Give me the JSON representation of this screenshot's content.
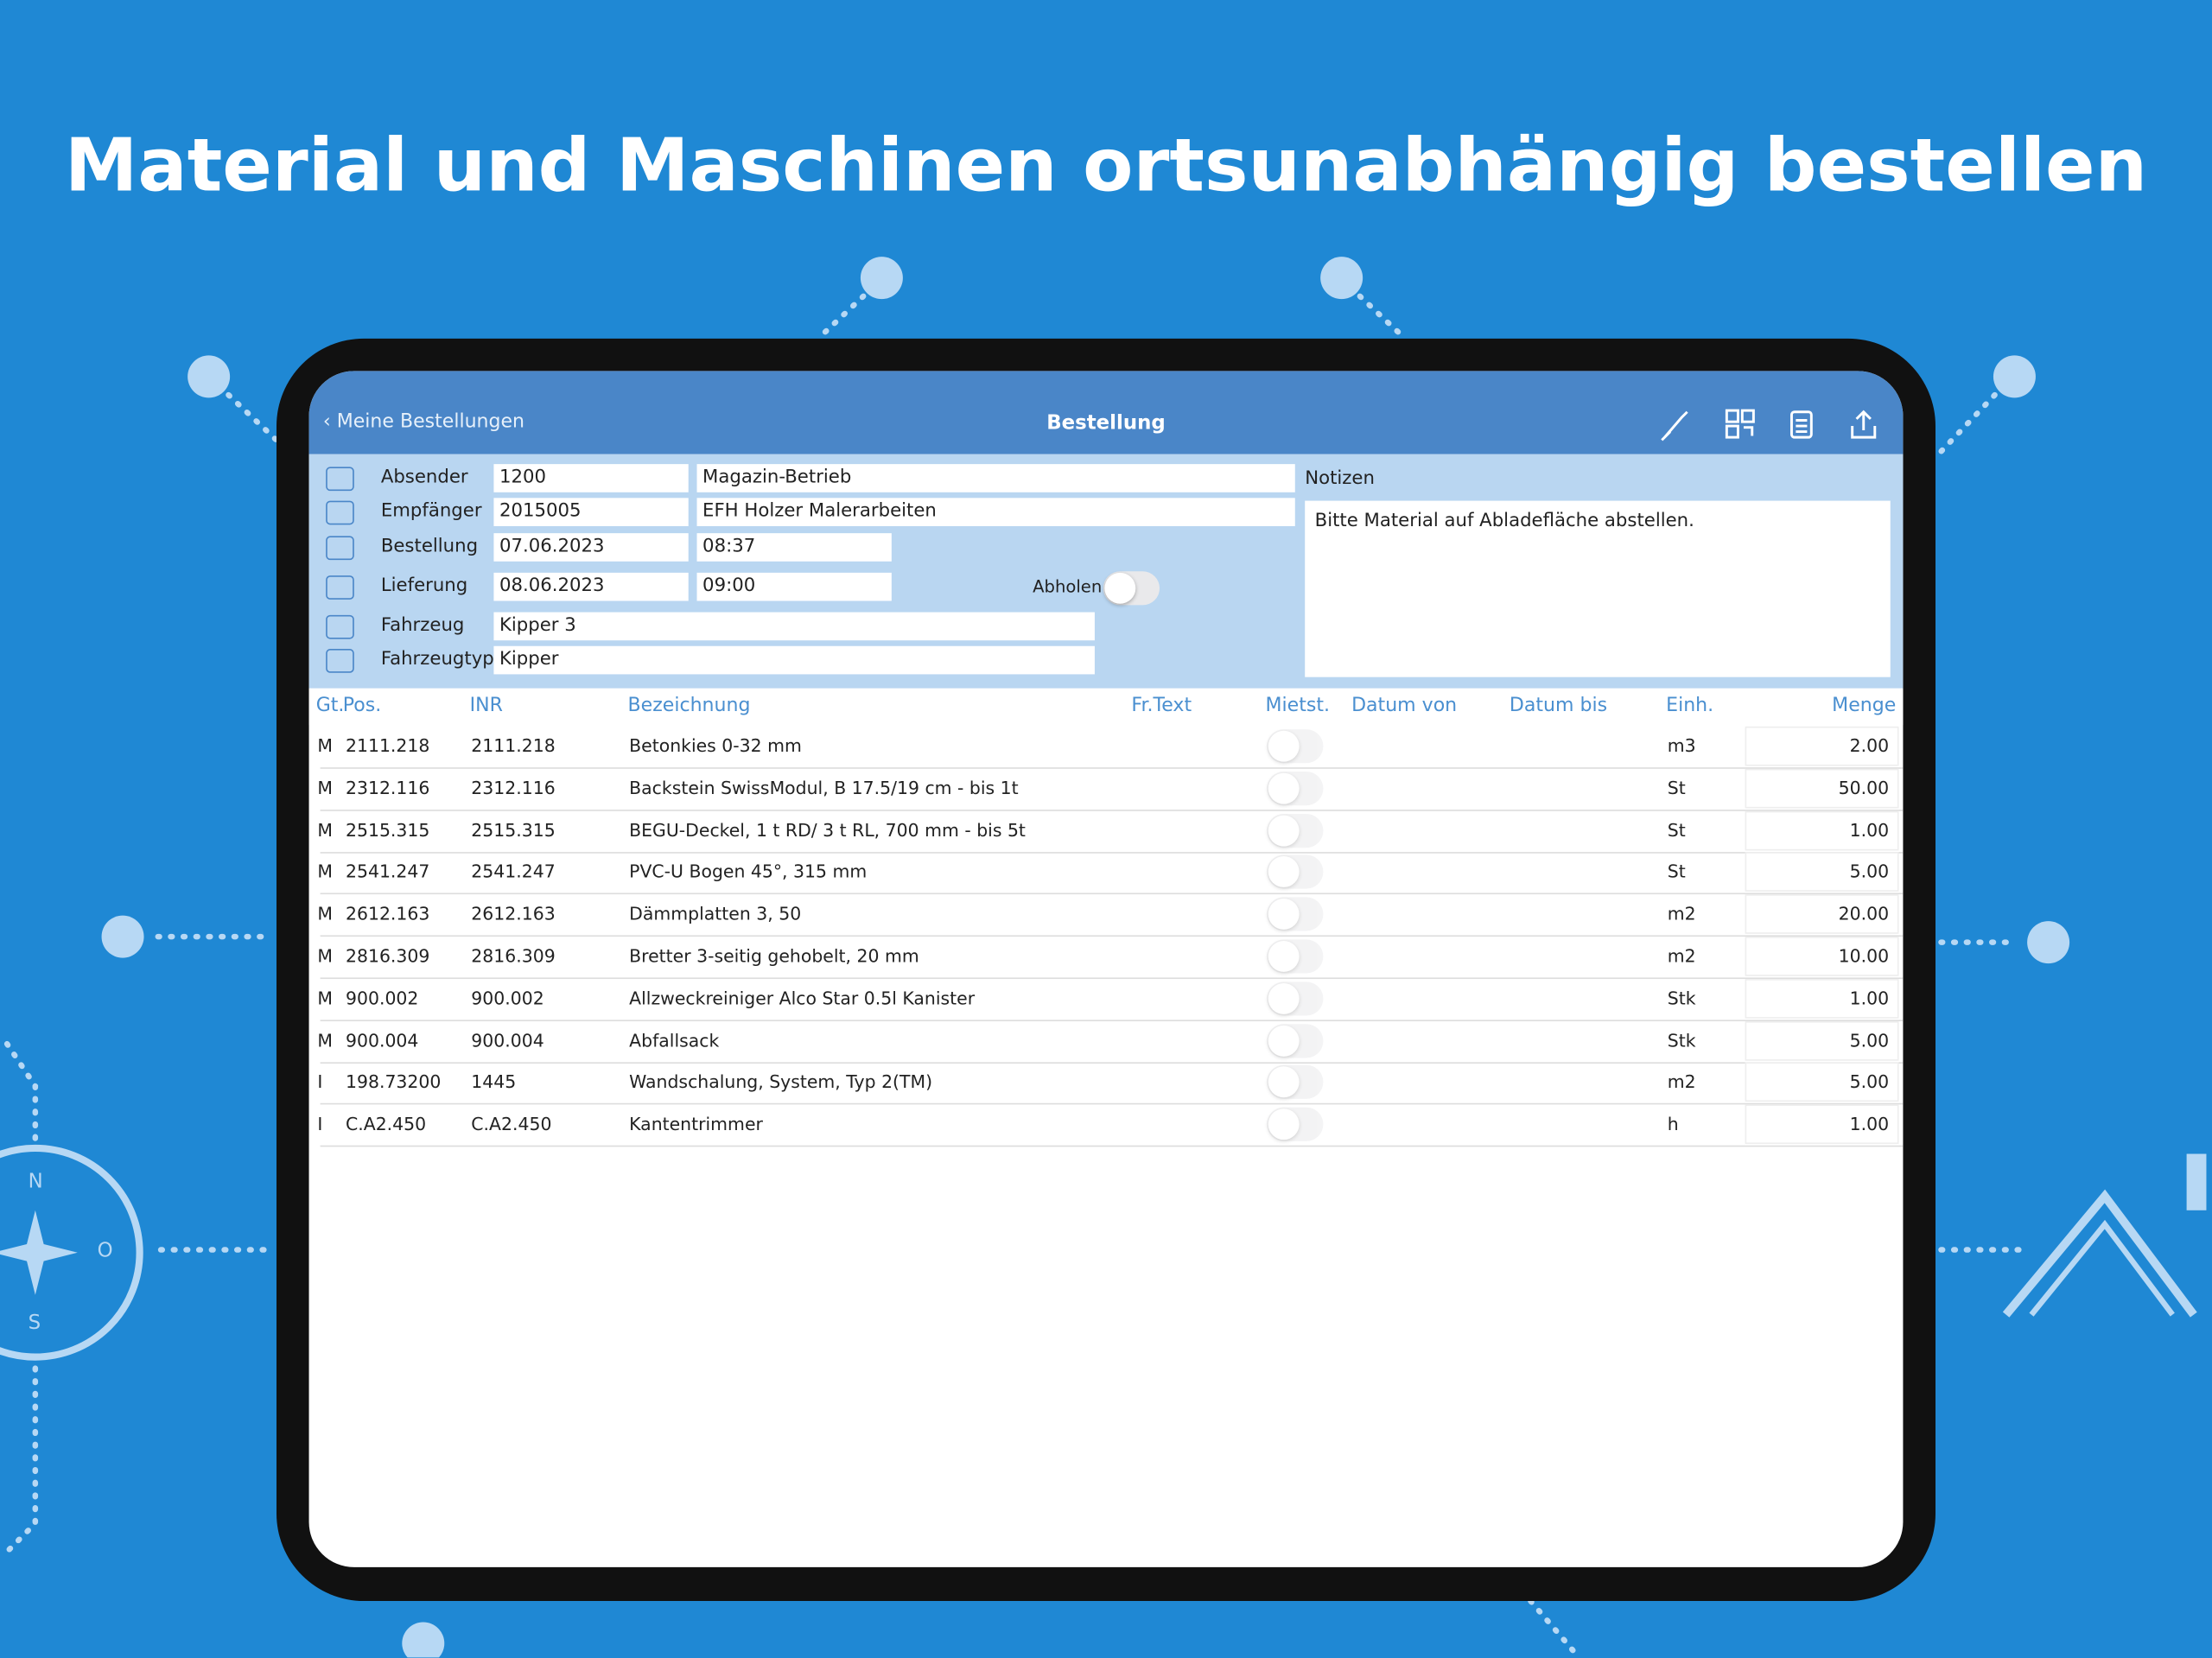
{
  "headline": "Material und Maschinen ortsunabhängig bestellen",
  "decor": {
    "compass": [
      "N",
      "O",
      "S"
    ]
  },
  "nav": {
    "back": "Meine Bestellungen",
    "title": "Bestellung"
  },
  "form": {
    "fields": [
      {
        "label": "Absender",
        "values": [
          "1200",
          "Magazin-Betrieb"
        ]
      },
      {
        "label": "Empfänger",
        "values": [
          "2015005",
          "EFH Holzer Malerarbeiten"
        ]
      },
      {
        "label": "Bestellung",
        "values": [
          "07.06.2023",
          "08:37"
        ]
      },
      {
        "label": "Lieferung",
        "values": [
          "08.06.2023",
          "09:00"
        ]
      },
      {
        "label": "Fahrzeug",
        "values": [
          "Kipper 3"
        ]
      },
      {
        "label": "Fahrzeugtyp",
        "values": [
          "Kipper"
        ]
      }
    ],
    "pickup_label": "Abholen",
    "notes_label": "Notizen",
    "notes": "Bitte Material auf Abladefläche abstellen."
  },
  "table": {
    "columns": [
      "Gt.",
      "Pos.",
      "INR",
      "Bezeichnung",
      "Fr.Text",
      "Mietst.",
      "Datum von",
      "Datum bis",
      "Einh.",
      "Menge"
    ],
    "rows": [
      [
        "M",
        "2111.218",
        "2111.218",
        "Betonkies 0-32 mm",
        "m3",
        "2.00"
      ],
      [
        "M",
        "2312.116",
        "2312.116",
        "Backstein SwissModul, B 17.5/19 cm - bis 1t",
        "St",
        "50.00"
      ],
      [
        "M",
        "2515.315",
        "2515.315",
        "BEGU-Deckel, 1 t RD/  3 t RL, 700 mm - bis 5t",
        "St",
        "1.00"
      ],
      [
        "M",
        "2541.247",
        "2541.247",
        "PVC-U Bogen 45°, 315 mm",
        "St",
        "5.00"
      ],
      [
        "M",
        "2612.163",
        "2612.163",
        "Dämmplatten 3, 50",
        "m2",
        "20.00"
      ],
      [
        "M",
        "2816.309",
        "2816.309",
        "Bretter 3-seitig gehobelt, 20 mm",
        "m2",
        "10.00"
      ],
      [
        "M",
        "900.002",
        "900.002",
        "Allzweckreiniger Alco Star 0.5l Kanister",
        "Stk",
        "1.00"
      ],
      [
        "M",
        "900.004",
        "900.004",
        "Abfallsack",
        "Stk",
        "5.00"
      ],
      [
        "I",
        "198.73200",
        "1445",
        "Wandschalung, System, Typ 2(TM)",
        "m2",
        "5.00"
      ],
      [
        "I",
        "C.A2.450",
        "C.A2.450",
        "Kantentrimmer",
        "h",
        "1.00"
      ]
    ]
  }
}
